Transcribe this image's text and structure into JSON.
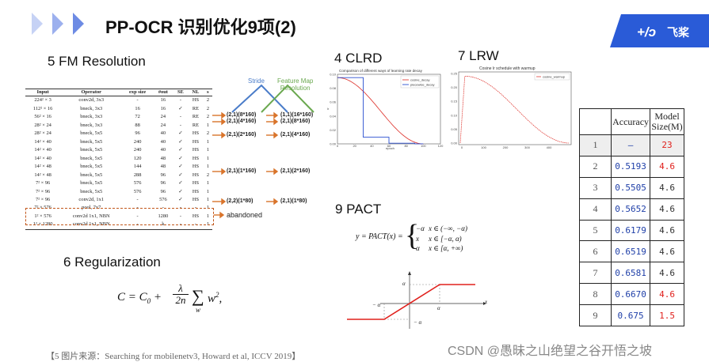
{
  "header": {
    "title": "PP-OCR 识别优化9项(2)",
    "logo_text": "飞桨"
  },
  "sections": {
    "fm_resolution": "5 FM Resolution",
    "clrd": "4 CLRD",
    "lrw": "7 LRW",
    "pact": "9 PACT",
    "regularization": "6 Regularization"
  },
  "operator_table": {
    "headers": [
      "Input",
      "Operator",
      "exp size",
      "#out",
      "SE",
      "NL",
      "s"
    ],
    "rows": [
      [
        "224² × 3",
        "conv2d, 3x3",
        "-",
        "16",
        "-",
        "HS",
        "2"
      ],
      [
        "112² × 16",
        "bneck, 3x3",
        "16",
        "16",
        "✓",
        "RE",
        "2"
      ],
      [
        "56² × 16",
        "bneck, 3x3",
        "72",
        "24",
        "-",
        "RE",
        "2"
      ],
      [
        "28² × 24",
        "bneck, 3x3",
        "88",
        "24",
        "-",
        "RE",
        "1"
      ],
      [
        "28² × 24",
        "bneck, 5x5",
        "96",
        "40",
        "✓",
        "HS",
        "2"
      ],
      [
        "14² × 40",
        "bneck, 5x5",
        "240",
        "40",
        "✓",
        "HS",
        "1"
      ],
      [
        "14² × 40",
        "bneck, 5x5",
        "240",
        "40",
        "✓",
        "HS",
        "1"
      ],
      [
        "14² × 40",
        "bneck, 5x5",
        "120",
        "48",
        "✓",
        "HS",
        "1"
      ],
      [
        "14² × 48",
        "bneck, 5x5",
        "144",
        "48",
        "✓",
        "HS",
        "1"
      ],
      [
        "14² × 48",
        "bneck, 5x5",
        "288",
        "96",
        "✓",
        "HS",
        "2"
      ],
      [
        "7² × 96",
        "bneck, 5x5",
        "576",
        "96",
        "✓",
        "HS",
        "1"
      ],
      [
        "7² × 96",
        "bneck, 5x5",
        "576",
        "96",
        "✓",
        "HS",
        "1"
      ],
      [
        "7² × 96",
        "conv2d, 1x1",
        "-",
        "576",
        "✓",
        "HS",
        "1"
      ],
      [
        "7² × 576",
        "pool, 7x7",
        "-",
        "-",
        "-",
        "-",
        "1"
      ],
      [
        "1² × 576",
        "conv2d 1x1, NBN",
        "-",
        "1280",
        "-",
        "HS",
        "1"
      ],
      [
        "1² × 1280",
        "conv2d 1x1, NBN",
        "-",
        "k",
        "-",
        "-",
        "1"
      ]
    ]
  },
  "stride_diagram": {
    "stride_label": "Stride",
    "fm_label_line1": "Feature Map",
    "fm_label_line2": "Resolution",
    "abandoned": "abandoned",
    "pairs": [
      {
        "stride": "(2,1)(8*160)",
        "fm": "(1,1)(16*160)"
      },
      {
        "stride": "(2,1)(4*160)",
        "fm": "(2,1)(8*160)"
      },
      {
        "stride": "(2,1)(2*160)",
        "fm": "(2,1)(4*160)"
      },
      {
        "stride": "(2,1)(1*160)",
        "fm": "(2,1)(2*160)"
      },
      {
        "stride": "(2,2)(1*80)",
        "fm": "(2,1)(1*80)"
      }
    ]
  },
  "clrd_chart": {
    "title": "Comparison of different ways of learning rate decay",
    "legend": [
      "cosine_decay",
      "piecewise_decay"
    ],
    "colors": [
      "#e0403a",
      "#2a4fd0"
    ],
    "y_ticks": [
      "0.10",
      "0.08",
      "0.06",
      "0.04",
      "0.02",
      "0.00"
    ],
    "x_ticks": [
      "0",
      "20",
      "40",
      "60",
      "80",
      "100",
      "120"
    ],
    "xlabel": "epoch",
    "ylabel": "lr"
  },
  "lrw_chart": {
    "title": "Cosine lr schedule with warmup",
    "legend": [
      "cosine_warmup"
    ],
    "color": "#e0403a",
    "y_ticks": [
      "0.25",
      "0.20",
      "0.15",
      "0.10",
      "0.05",
      "0.00"
    ],
    "x_ticks": [
      "0",
      "100",
      "200",
      "300",
      "400"
    ]
  },
  "accuracy_table": {
    "headers": [
      "",
      "Accuracy",
      "Model Size(M)"
    ],
    "rows": [
      {
        "n": "1",
        "acc": "—",
        "size": "23",
        "size_red": true
      },
      {
        "n": "2",
        "acc": "0.5193",
        "size": "4.6",
        "size_red": true
      },
      {
        "n": "3",
        "acc": "0.5505",
        "size": "4.6",
        "size_red": false
      },
      {
        "n": "4",
        "acc": "0.5652",
        "size": "4.6",
        "size_red": false
      },
      {
        "n": "5",
        "acc": "0.6179",
        "size": "4.6",
        "size_red": false
      },
      {
        "n": "6",
        "acc": "0.6519",
        "size": "4.6",
        "size_red": false
      },
      {
        "n": "7",
        "acc": "0.6581",
        "size": "4.6",
        "size_red": false
      },
      {
        "n": "8",
        "acc": "0.6670",
        "size": "4.6",
        "size_red": true
      },
      {
        "n": "9",
        "acc": "0.675",
        "size": "1.5",
        "size_red": true
      }
    ]
  },
  "pact": {
    "lhs": "y = PACT(x) =",
    "cases": [
      [
        "−α",
        "x ∈ (−∞, −α)"
      ],
      [
        "x",
        "x ∈ [−α, α)"
      ],
      [
        "α",
        "x ∈ [α, +∞)"
      ]
    ],
    "graph_labels": {
      "alpha_pos": "α",
      "alpha_neg": "− α",
      "x": "x"
    }
  },
  "regularization_formula": "C = C₀ + (λ/2n) Σ_w w²",
  "source_note": "【5 图片来源：Searching for mobilenetv3, Howard et al, ICCV 2019】",
  "watermark": "CSDN @愚昧之山绝望之谷开悟之坡"
}
